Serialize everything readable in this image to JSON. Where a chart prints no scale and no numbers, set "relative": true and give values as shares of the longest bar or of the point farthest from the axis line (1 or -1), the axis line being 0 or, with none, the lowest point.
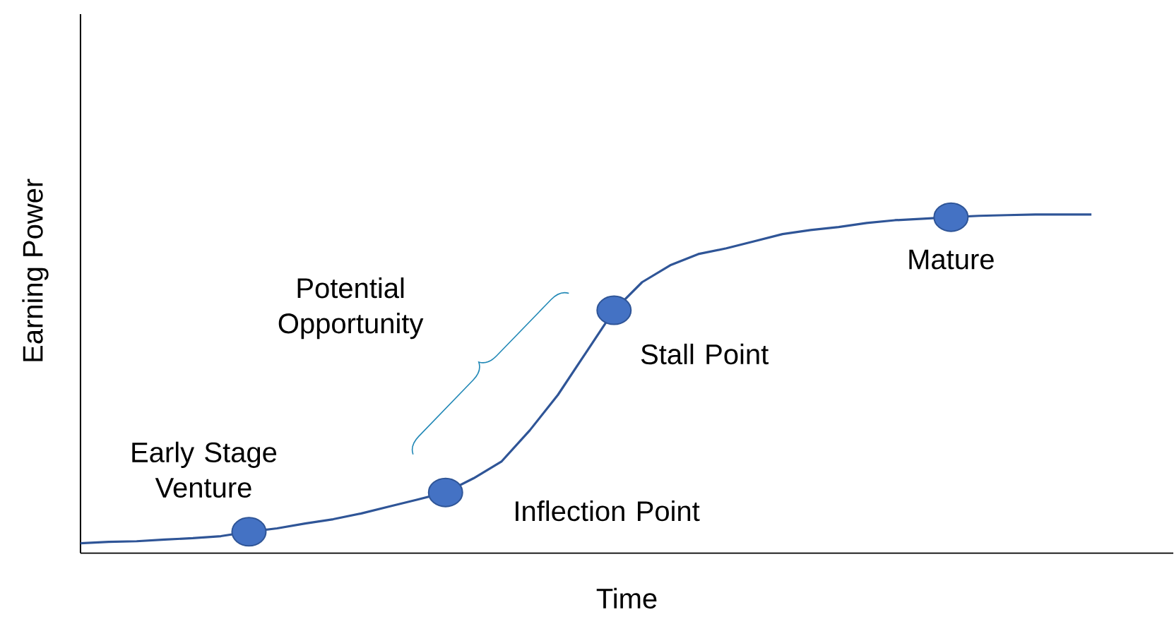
{
  "chart_data": {
    "type": "line",
    "relative": true,
    "xlabel": "Time",
    "ylabel": "Earning Power",
    "tick_labels": false,
    "categories": [
      null,
      null,
      null,
      null,
      null,
      null,
      null,
      null,
      null,
      null,
      null,
      null,
      null,
      null,
      null,
      null,
      null,
      null,
      null,
      null,
      null,
      null,
      null,
      null,
      null,
      null,
      null,
      null,
      null,
      null,
      null,
      null,
      null,
      null,
      null,
      null,
      null
    ],
    "series": [
      {
        "color": "#2f5597",
        "line_style": "solid",
        "values": [
          0.029,
          0.033,
          0.035,
          0.04,
          0.044,
          0.05,
          0.063,
          0.073,
          0.0875,
          0.1,
          0.117,
          0.1375,
          0.158,
          0.179,
          0.221,
          0.271,
          0.3625,
          0.467,
          0.592,
          0.717,
          0.8,
          0.85,
          0.883,
          0.9,
          0.921,
          0.942,
          0.954,
          0.963,
          0.975,
          0.983,
          0.9875,
          0.992,
          0.996,
          0.998,
          1,
          1,
          1
        ]
      }
    ],
    "annotations": [
      "Early Stage Venture",
      "Inflection Point",
      "Stall Point",
      "Mature",
      "Potential Opportunity"
    ]
  }
}
